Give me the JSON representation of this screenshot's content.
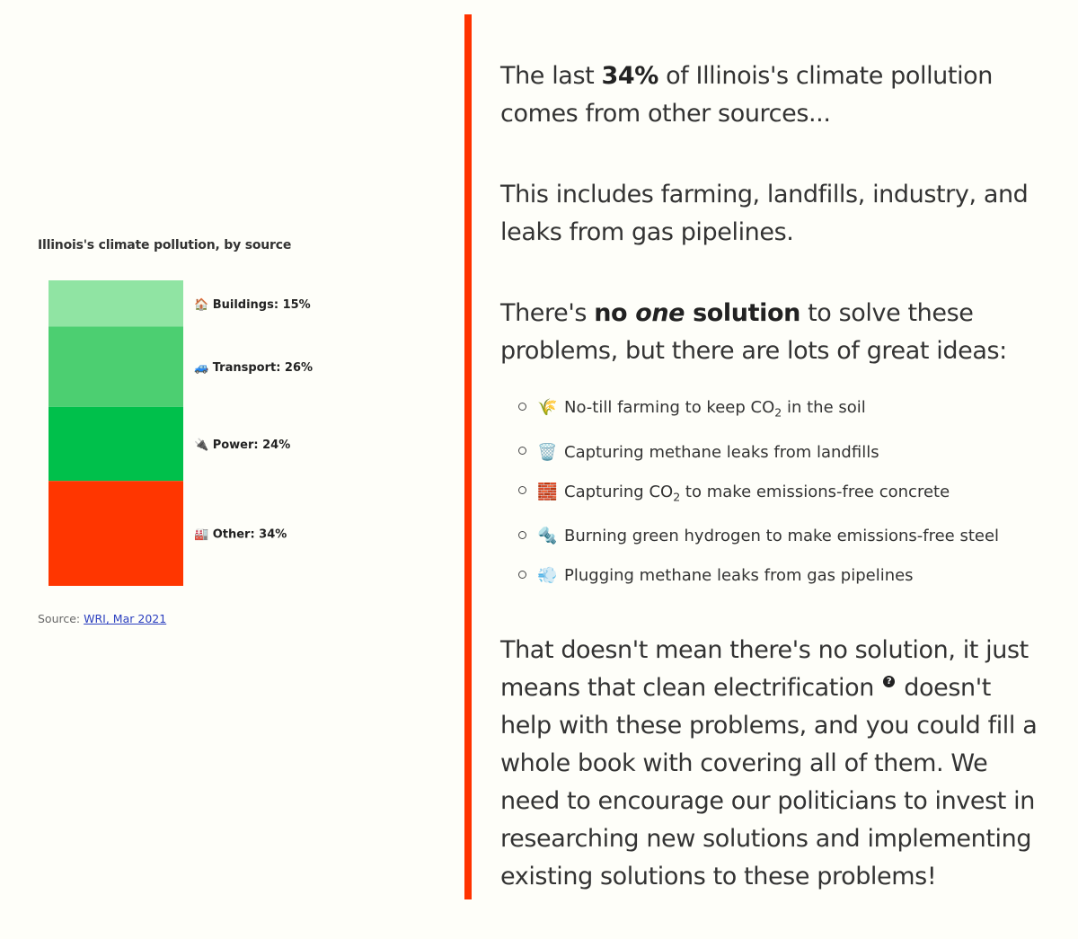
{
  "chart_data": {
    "type": "bar",
    "title": "Illinois's climate pollution, by source",
    "stacked": true,
    "orientation": "vertical",
    "unit": "%",
    "categories": [
      "Buildings",
      "Transport",
      "Power",
      "Other"
    ],
    "values": [
      15,
      26,
      24,
      34
    ],
    "segments": [
      {
        "name": "Buildings",
        "value": 15,
        "label": "🏠 Buildings: 15%",
        "color": "#90e4a3"
      },
      {
        "name": "Transport",
        "value": 26,
        "label": "🚙 Transport: 26%",
        "color": "#4ccf71"
      },
      {
        "name": "Power",
        "value": 24,
        "label": "🔌 Power: 24%",
        "color": "#00c04b"
      },
      {
        "name": "Other",
        "value": 34,
        "label": "🏭 Other: 34%",
        "color": "#ff3600"
      }
    ],
    "source_prefix": "Source: ",
    "source_link": "WRI, Mar 2021"
  },
  "colors": {
    "accent": "#ff3300",
    "background": "#fefef9",
    "text": "#333333",
    "link": "#2b3fbf"
  },
  "text": {
    "p1": {
      "pre": "The last ",
      "bold": "34%",
      "post": " of Illinois's climate pollution comes from other sources..."
    },
    "p2": "This includes farming, landfills, industry, and leaks from gas pipelines.",
    "p3": {
      "pre": "There's ",
      "bold1": "no ",
      "bold_italic": "one",
      "bold2": " solution",
      "post": " to solve these problems, but there are lots of great ideas:"
    },
    "ideas": [
      {
        "emoji": "🌾",
        "icon": "wheat-icon",
        "pre": "No-till farming to keep CO",
        "sub": "2",
        "post": " in the soil"
      },
      {
        "emoji": "🗑️",
        "icon": "trash-can-icon",
        "pre": "Capturing methane leaks from landfills",
        "sub": "",
        "post": ""
      },
      {
        "emoji": "🧱",
        "icon": "brick-icon",
        "pre": "Capturing CO",
        "sub": "2",
        "post": " to make emissions-free concrete"
      },
      {
        "emoji": "🔩",
        "icon": "bolt-icon",
        "pre": "Burning green hydrogen to make emissions-free steel",
        "sub": "",
        "post": ""
      },
      {
        "emoji": "💨",
        "icon": "wind-icon",
        "pre": "Plugging methane leaks from gas pipelines",
        "sub": "",
        "post": ""
      }
    ],
    "p4": {
      "pre": "That doesn't mean there's no solution, it just means that clean electrification ",
      "help": "?",
      "post": " doesn't help with these problems, and you could fill a whole book with covering all of them. We need to encourage our politicians to invest in researching new solutions and implementing existing solutions to these problems!"
    }
  }
}
